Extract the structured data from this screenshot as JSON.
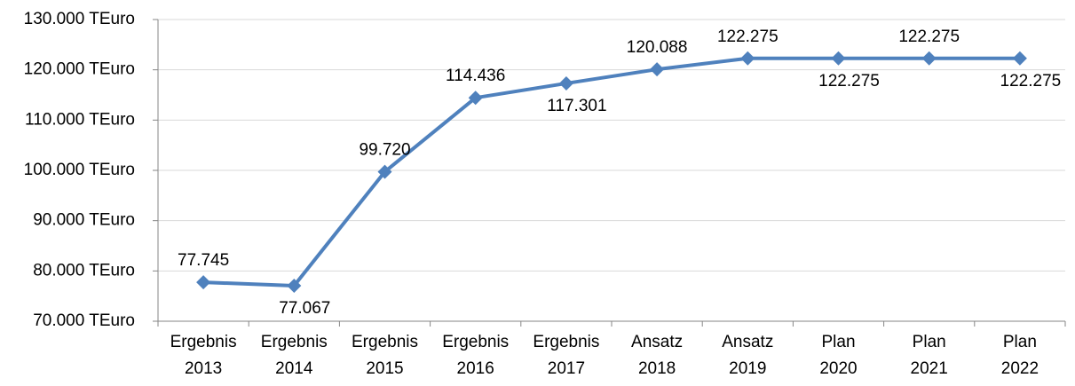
{
  "chart_data": {
    "type": "line",
    "categories": [
      "Ergebnis 2013",
      "Ergebnis 2014",
      "Ergebnis 2015",
      "Ergebnis 2016",
      "Ergebnis 2017",
      "Ansatz 2018",
      "Ansatz 2019",
      "Plan 2020",
      "Plan 2021",
      "Plan 2022"
    ],
    "series": [
      {
        "name": null,
        "color": "#4f81bd",
        "values": [
          77745,
          77067,
          99720,
          114436,
          117301,
          120088,
          122275,
          122275,
          122275,
          122275
        ],
        "value_labels": [
          "77.745",
          "77.067",
          "99.720",
          "114.436",
          "117.301",
          "120.088",
          "122.275",
          "122.275",
          "122.275",
          "122.275"
        ]
      }
    ],
    "ylim": [
      70000,
      130000
    ],
    "yticks": [
      {
        "value": 70000,
        "label": "70.000 TEuro"
      },
      {
        "value": 80000,
        "label": "80.000 TEuro"
      },
      {
        "value": 90000,
        "label": "90.000 TEuro"
      },
      {
        "value": 100000,
        "label": "100.000 TEuro"
      },
      {
        "value": 110000,
        "label": "110.000 TEuro"
      },
      {
        "value": 120000,
        "label": "120.000 TEuro"
      },
      {
        "value": 130000,
        "label": "130.000 TEuro"
      }
    ],
    "grid": true
  }
}
